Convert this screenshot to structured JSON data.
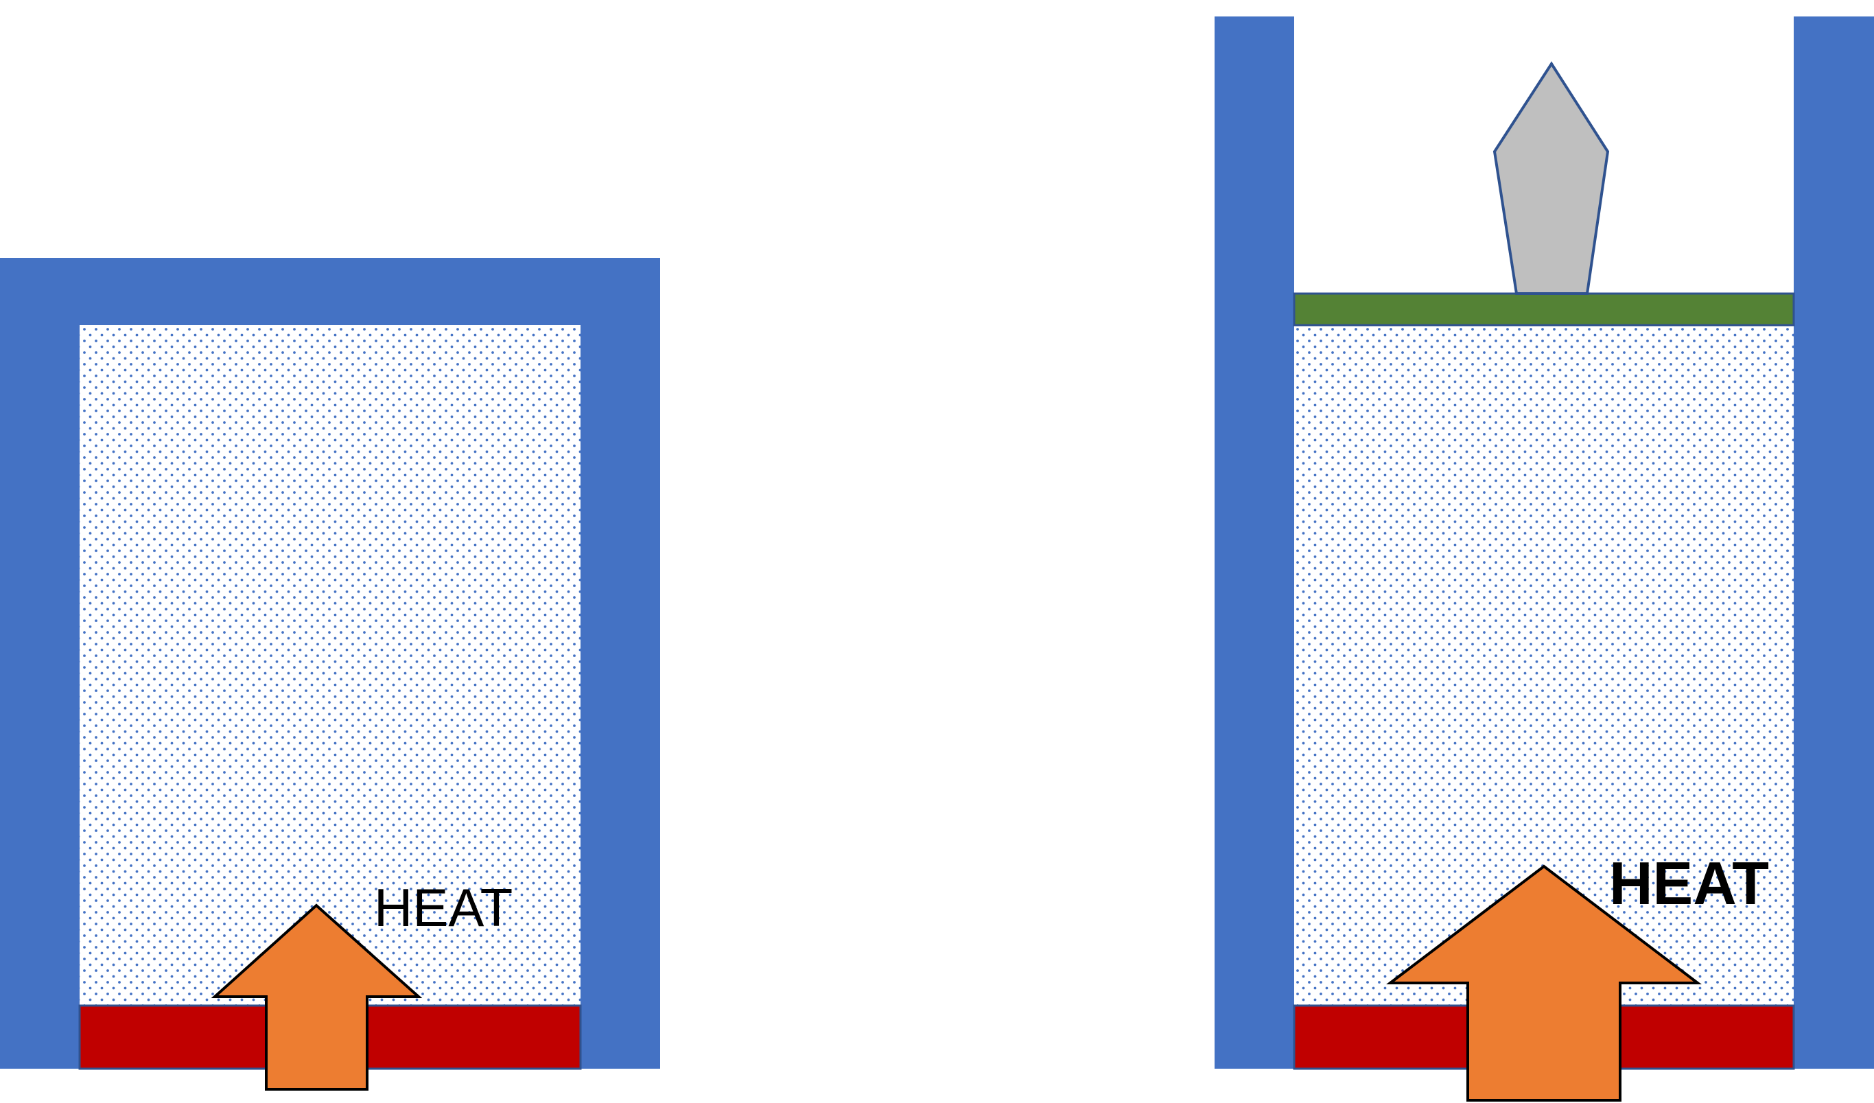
{
  "colors": {
    "container_wall": "#4472c4",
    "gas_dots": "#4472c4",
    "heater": "#c00000",
    "heat_arrow": "#ed7d31",
    "piston": "#548235",
    "weight": "#bfbfbf",
    "outline": "#2f528f",
    "background": "#ffffff"
  },
  "left_panel": {
    "container": "closed-rigid-container",
    "heat_label": "HEAT"
  },
  "right_panel": {
    "container": "open-cylinder-with-piston",
    "heat_label": "HEAT"
  }
}
